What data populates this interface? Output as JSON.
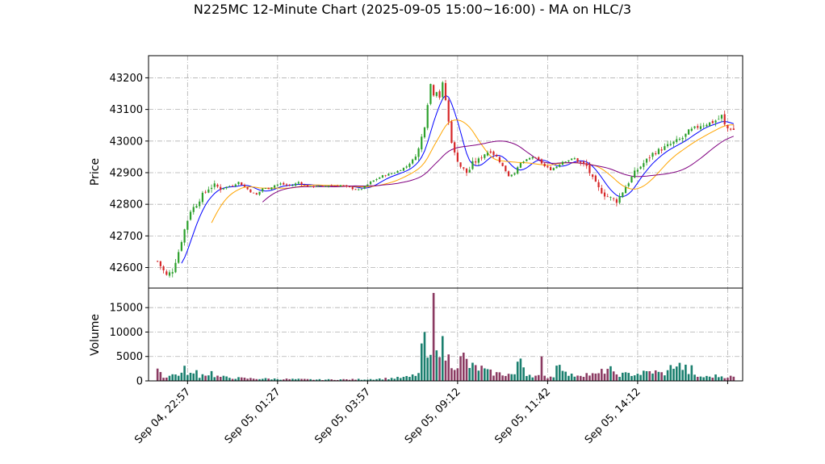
{
  "chart_data": {
    "type": "candlestick",
    "title": "N225MC 12-Minute Chart (2025-09-05 15:00~16:00) - MA on HLC/3",
    "price_panel": {
      "ylabel": "Price",
      "ylim": [
        42535,
        43270
      ],
      "yticks": [
        42600,
        42700,
        42800,
        42900,
        43000,
        43100,
        43200
      ],
      "ytick_labels": [
        "42600",
        "42700",
        "42800",
        "42900",
        "43000",
        "43100",
        "43200"
      ],
      "grid": true
    },
    "volume_panel": {
      "ylabel": "Volume",
      "ylim": [
        0,
        19000
      ],
      "yticks": [
        0,
        5000,
        10000,
        15000
      ],
      "ytick_labels": [
        "0",
        "5000",
        "10000",
        "15000"
      ],
      "grid": true
    },
    "x_range": [
      -3,
      195
    ],
    "xticks": [
      10,
      40,
      70,
      100,
      130,
      160,
      190
    ],
    "xtick_labels": [
      "Sep 04, 22:57",
      "Sep 05, 01:27",
      "Sep 05, 03:57",
      "Sep 05, 09:12",
      "Sep 05, 11:42",
      "Sep 05, 14:12",
      ""
    ],
    "colors": {
      "up": "#2ca02c",
      "down": "#d62728",
      "volume_up": "#1a7f6e",
      "volume_down": "#8b3a62",
      "ma_fast": "#0000ff",
      "ma_mid": "#ffa500",
      "ma_slow": "#800080"
    },
    "close_anchors": [
      [
        0,
        42620
      ],
      [
        3,
        42575
      ],
      [
        5,
        42590
      ],
      [
        7,
        42650
      ],
      [
        9,
        42720
      ],
      [
        11,
        42780
      ],
      [
        13,
        42800
      ],
      [
        15,
        42830
      ],
      [
        17,
        42850
      ],
      [
        19,
        42860
      ],
      [
        21,
        42850
      ],
      [
        23,
        42855
      ],
      [
        25,
        42860
      ],
      [
        27,
        42870
      ],
      [
        29,
        42855
      ],
      [
        31,
        42840
      ],
      [
        33,
        42830
      ],
      [
        35,
        42850
      ],
      [
        37,
        42850
      ],
      [
        39,
        42860
      ],
      [
        41,
        42865
      ],
      [
        43,
        42860
      ],
      [
        45,
        42860
      ],
      [
        47,
        42870
      ],
      [
        49,
        42860
      ],
      [
        51,
        42855
      ],
      [
        53,
        42858
      ],
      [
        55,
        42855
      ],
      [
        57,
        42860
      ],
      [
        59,
        42858
      ],
      [
        61,
        42860
      ],
      [
        63,
        42855
      ],
      [
        65,
        42850
      ],
      [
        67,
        42845
      ],
      [
        69,
        42855
      ],
      [
        71,
        42870
      ],
      [
        73,
        42880
      ],
      [
        75,
        42890
      ],
      [
        77,
        42895
      ],
      [
        79,
        42900
      ],
      [
        81,
        42910
      ],
      [
        83,
        42920
      ],
      [
        85,
        42940
      ],
      [
        87,
        42975
      ],
      [
        89,
        43050
      ],
      [
        90,
        43120
      ],
      [
        91,
        43180
      ],
      [
        92,
        43150
      ],
      [
        93,
        43160
      ],
      [
        94,
        43140
      ],
      [
        95,
        43180
      ],
      [
        96,
        43130
      ],
      [
        97,
        43060
      ],
      [
        98,
        43000
      ],
      [
        99,
        42960
      ],
      [
        100,
        42940
      ],
      [
        101,
        42920
      ],
      [
        102,
        42910
      ],
      [
        103,
        42900
      ],
      [
        104,
        42910
      ],
      [
        105,
        42930
      ],
      [
        107,
        42940
      ],
      [
        109,
        42960
      ],
      [
        111,
        42970
      ],
      [
        113,
        42950
      ],
      [
        115,
        42920
      ],
      [
        117,
        42890
      ],
      [
        119,
        42900
      ],
      [
        121,
        42930
      ],
      [
        123,
        42940
      ],
      [
        125,
        42950
      ],
      [
        127,
        42940
      ],
      [
        129,
        42920
      ],
      [
        131,
        42910
      ],
      [
        133,
        42920
      ],
      [
        135,
        42935
      ],
      [
        137,
        42940
      ],
      [
        139,
        42945
      ],
      [
        141,
        42930
      ],
      [
        143,
        42920
      ],
      [
        145,
        42880
      ],
      [
        147,
        42850
      ],
      [
        149,
        42830
      ],
      [
        151,
        42820
      ],
      [
        153,
        42810
      ],
      [
        155,
        42840
      ],
      [
        157,
        42870
      ],
      [
        159,
        42900
      ],
      [
        161,
        42920
      ],
      [
        163,
        42940
      ],
      [
        165,
        42960
      ],
      [
        167,
        42970
      ],
      [
        169,
        42980
      ],
      [
        171,
        42990
      ],
      [
        173,
        43000
      ],
      [
        175,
        43010
      ],
      [
        177,
        43030
      ],
      [
        179,
        43040
      ],
      [
        181,
        43050
      ],
      [
        183,
        43055
      ],
      [
        185,
        43060
      ],
      [
        187,
        43070
      ],
      [
        188,
        43080
      ],
      [
        189,
        43050
      ],
      [
        190,
        43040
      ],
      [
        191,
        43040
      ],
      [
        192,
        43035
      ]
    ],
    "volume_anchors": [
      [
        0,
        2700
      ],
      [
        2,
        800
      ],
      [
        5,
        1200
      ],
      [
        8,
        1500
      ],
      [
        10,
        1800
      ],
      [
        12,
        1200
      ],
      [
        14,
        1000
      ],
      [
        16,
        1500
      ],
      [
        18,
        1300
      ],
      [
        20,
        900
      ],
      [
        23,
        700
      ],
      [
        26,
        600
      ],
      [
        30,
        500
      ],
      [
        35,
        450
      ],
      [
        40,
        400
      ],
      [
        45,
        350
      ],
      [
        50,
        300
      ],
      [
        55,
        250
      ],
      [
        60,
        300
      ],
      [
        65,
        300
      ],
      [
        70,
        350
      ],
      [
        75,
        450
      ],
      [
        80,
        600
      ],
      [
        84,
        800
      ],
      [
        87,
        1500
      ],
      [
        89,
        9500
      ],
      [
        90,
        3500
      ],
      [
        91,
        5000
      ],
      [
        92,
        18000
      ],
      [
        93,
        10000
      ],
      [
        94,
        7800
      ],
      [
        95,
        6800
      ],
      [
        96,
        5200
      ],
      [
        97,
        4500
      ],
      [
        98,
        3800
      ],
      [
        100,
        3500
      ],
      [
        102,
        4800
      ],
      [
        104,
        3000
      ],
      [
        106,
        2700
      ],
      [
        108,
        2500
      ],
      [
        110,
        1800
      ],
      [
        113,
        1500
      ],
      [
        116,
        1400
      ],
      [
        119,
        1300
      ],
      [
        121,
        4700
      ],
      [
        123,
        1500
      ],
      [
        126,
        1000
      ],
      [
        130,
        800
      ],
      [
        132,
        1000
      ],
      [
        134,
        4800
      ],
      [
        136,
        1500
      ],
      [
        138,
        1100
      ],
      [
        140,
        1300
      ],
      [
        143,
        1400
      ],
      [
        146,
        1200
      ],
      [
        148,
        1800
      ],
      [
        150,
        2500
      ],
      [
        152,
        1400
      ],
      [
        155,
        1300
      ],
      [
        158,
        1400
      ],
      [
        161,
        1500
      ],
      [
        163,
        1700
      ],
      [
        165,
        1900
      ],
      [
        168,
        1500
      ],
      [
        170,
        1800
      ],
      [
        172,
        3500
      ],
      [
        174,
        3000
      ],
      [
        176,
        2500
      ],
      [
        178,
        1200
      ],
      [
        180,
        900
      ],
      [
        183,
        800
      ],
      [
        186,
        1000
      ],
      [
        189,
        900
      ],
      [
        192,
        800
      ]
    ],
    "volume_spikes": [
      [
        9,
        3100
      ],
      [
        13,
        2200
      ],
      [
        18,
        2000
      ],
      [
        89,
        10000
      ],
      [
        92,
        18000
      ],
      [
        128,
        5000
      ],
      [
        151,
        3000
      ],
      [
        174,
        3700
      ],
      [
        178,
        3200
      ]
    ],
    "moving_averages": [
      {
        "key": "ma_fast",
        "start": 8,
        "period": 3
      },
      {
        "key": "ma_mid",
        "start": 18,
        "period": 7
      },
      {
        "key": "ma_slow",
        "start": 35,
        "period": 15
      }
    ]
  }
}
